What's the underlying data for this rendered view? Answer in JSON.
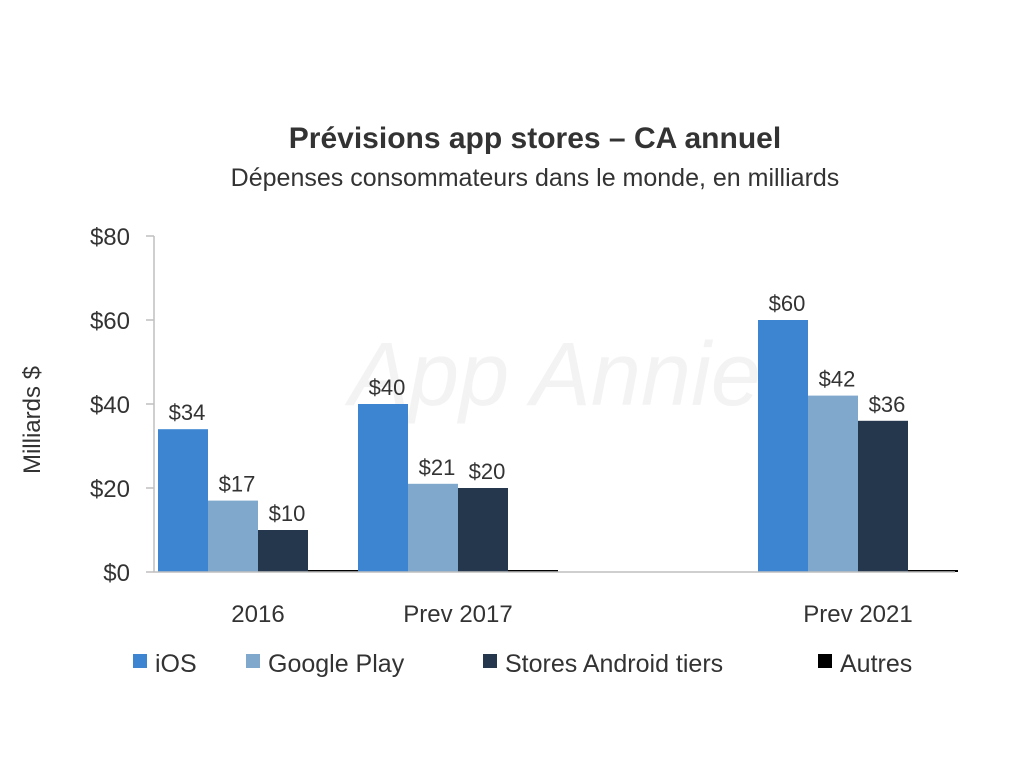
{
  "chart_data": {
    "type": "bar",
    "title": "Prévisions app stores – CA annuel",
    "subtitle": "Dépenses consommateurs dans le monde, en milliards",
    "ylabel": "Milliards $",
    "xlabel": "",
    "ylim": [
      0,
      80
    ],
    "yticks": [
      "$0",
      "$20",
      "$40",
      "$60",
      "$80"
    ],
    "categories": [
      "2016",
      "Prev 2017",
      "",
      "Prev 2021"
    ],
    "series": [
      {
        "name": "iOS",
        "color": "#3d85d1",
        "values": [
          34,
          40,
          null,
          60
        ],
        "labels": [
          "$34",
          "$40",
          "",
          "$60"
        ]
      },
      {
        "name": "Google Play",
        "color": "#7fa8cc",
        "values": [
          17,
          21,
          null,
          42
        ],
        "labels": [
          "$17",
          "$21",
          "",
          "$42"
        ]
      },
      {
        "name": "Stores Android tiers",
        "color": "#24374d",
        "values": [
          10,
          20,
          null,
          36
        ],
        "labels": [
          "$10",
          "$20",
          "",
          "$36"
        ]
      },
      {
        "name": "Autres",
        "color": "#000000",
        "values": [
          0.3,
          0.3,
          null,
          0.3
        ],
        "labels": [
          "",
          "",
          "",
          ""
        ]
      }
    ],
    "legend_position": "bottom",
    "grid": false,
    "watermark": "App Annie"
  }
}
